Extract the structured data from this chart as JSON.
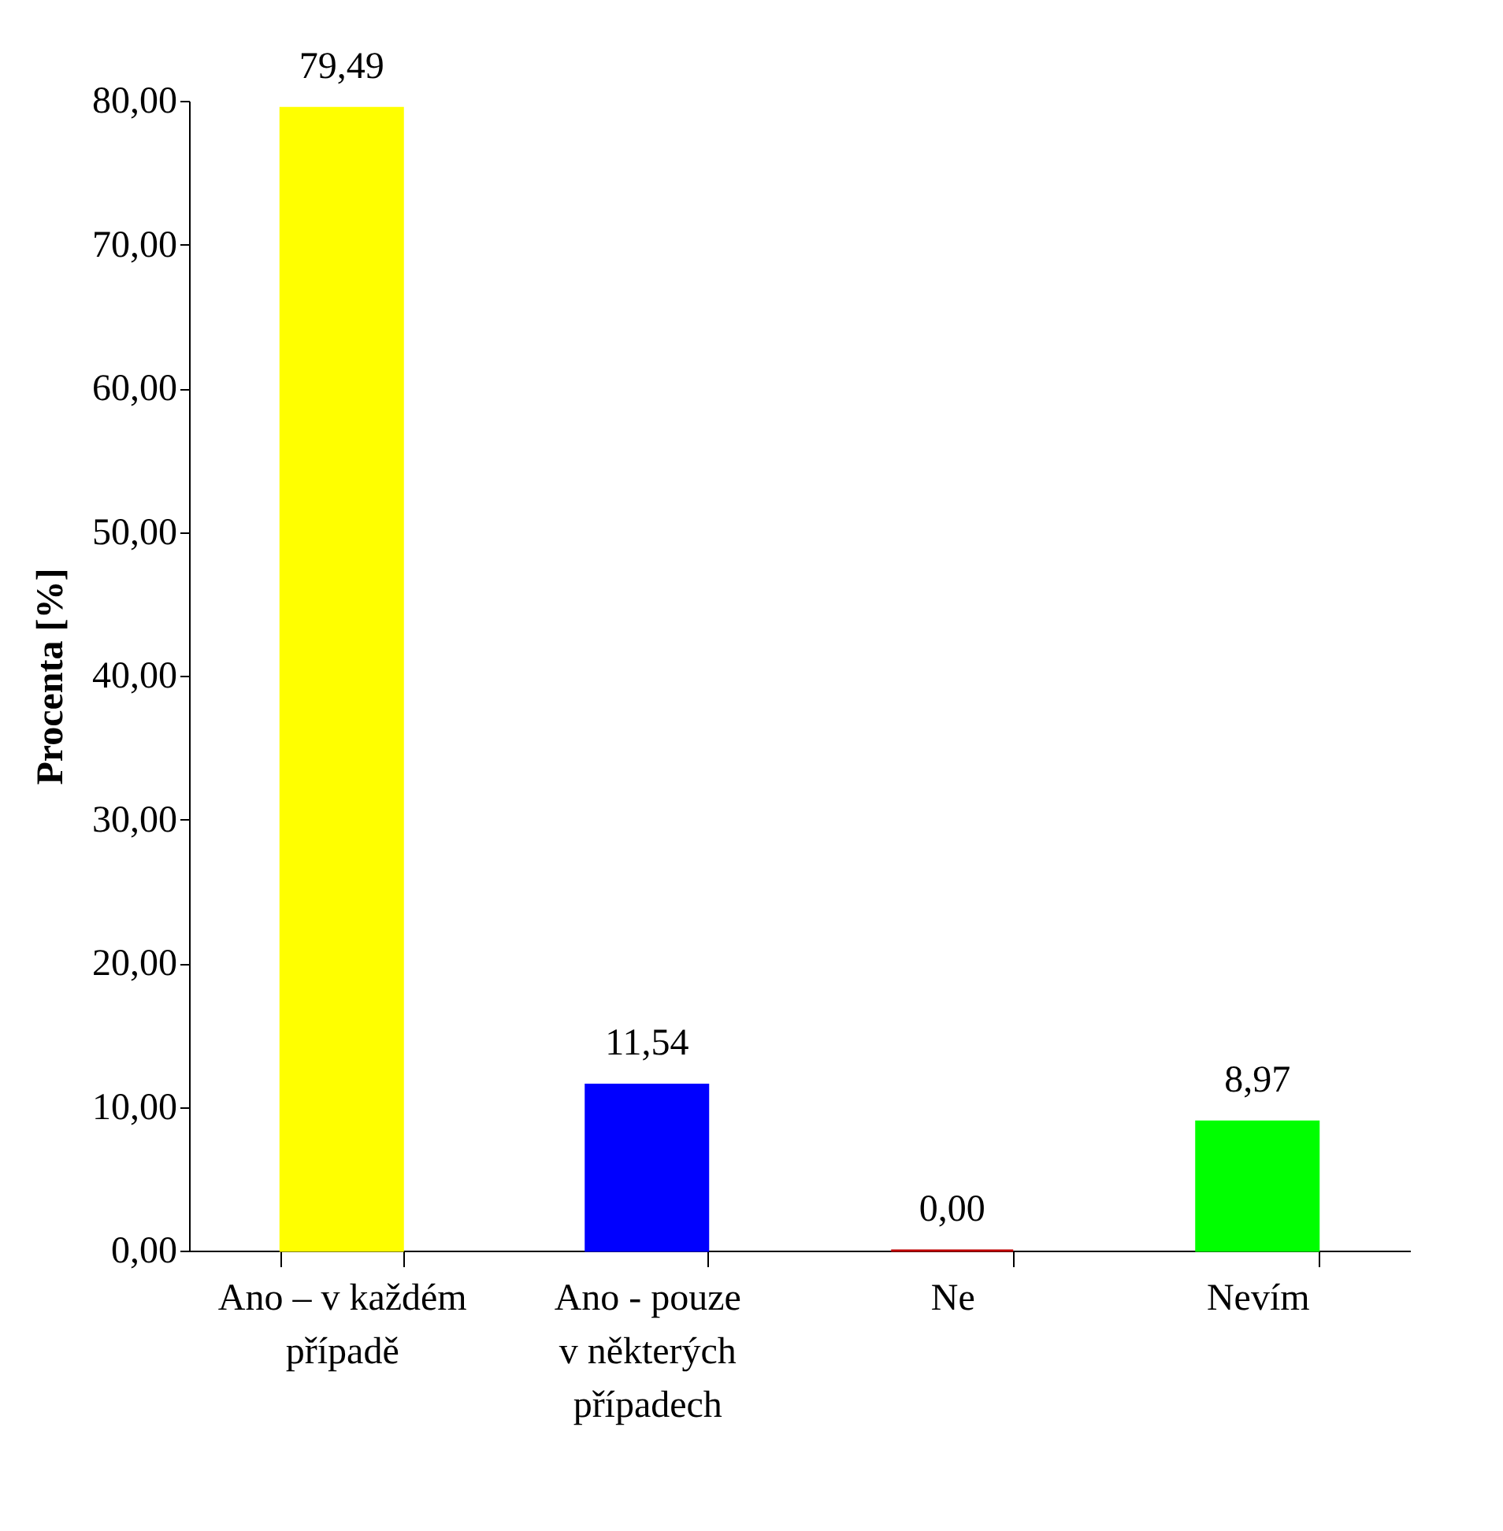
{
  "chart_data": {
    "type": "bar",
    "ylabel": "Procenta [%]",
    "categories": [
      "Ano – v každém\npřípadě",
      "Ano -  pouze\nv některých\npřípadech",
      "Ne",
      "Nevím"
    ],
    "values": [
      79.49,
      11.54,
      0,
      8.97
    ],
    "colors": [
      "#ffff00",
      "#0000ff",
      "#c00000",
      "#00ff00"
    ],
    "value_labels": [
      "79,49",
      "11,54",
      "0,00",
      "8,97"
    ],
    "ylim": [
      0,
      80
    ],
    "yticks": [
      {
        "value": 0,
        "label": "0,00"
      },
      {
        "value": 10,
        "label": "10,00"
      },
      {
        "value": 20,
        "label": "20,00"
      },
      {
        "value": 30,
        "label": "30,00"
      },
      {
        "value": 40,
        "label": "40,00"
      },
      {
        "value": 50,
        "label": "50,00"
      },
      {
        "value": 60,
        "label": "60,00"
      },
      {
        "value": 70,
        "label": "70,00"
      },
      {
        "value": 80,
        "label": "80,00"
      }
    ]
  }
}
